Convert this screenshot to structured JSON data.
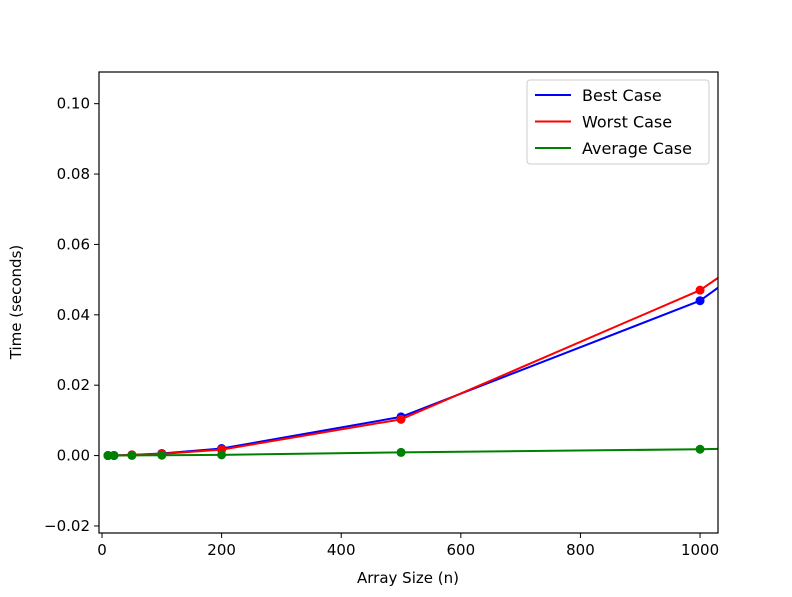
{
  "chart_data": {
    "type": "line",
    "xlabel": "Array Size (n)",
    "ylabel": "Time (seconds)",
    "xlim": [
      -5,
      1030
    ],
    "ylim": [
      -0.022,
      0.109
    ],
    "xticks": [
      0,
      200,
      400,
      600,
      800,
      1000
    ],
    "yticks": [
      -0.02,
      0.0,
      0.02,
      0.04,
      0.06,
      0.08,
      0.1
    ],
    "xtick_labels": [
      "0",
      "200",
      "400",
      "600",
      "800",
      "1000"
    ],
    "ytick_labels": [
      "−0.02",
      "0.00",
      "0.02",
      "0.04",
      "0.06",
      "0.08",
      "0.10"
    ],
    "grid": false,
    "legend_position": "upper-right",
    "x": [
      10,
      20,
      50,
      100,
      200,
      500,
      1000
    ],
    "series": [
      {
        "name": "Best Case",
        "color": "#0000ff",
        "values": [
          1e-05,
          3e-05,
          0.0002,
          0.0006,
          0.002,
          0.011,
          0.044
        ],
        "trend_end": {
          "x": 1030,
          "y": 0.0477
        }
      },
      {
        "name": "Worst Case",
        "color": "#ff0000",
        "values": [
          1e-05,
          3e-05,
          0.0002,
          0.0005,
          0.0017,
          0.0103,
          0.047
        ],
        "trend_end": {
          "x": 1030,
          "y": 0.0505
        }
      },
      {
        "name": "Average Case",
        "color": "#008000",
        "values": [
          5e-06,
          1e-05,
          5e-05,
          0.0001,
          0.0002,
          0.0009,
          0.0018
        ],
        "trend_end": {
          "x": 1030,
          "y": 0.0019
        }
      }
    ]
  }
}
